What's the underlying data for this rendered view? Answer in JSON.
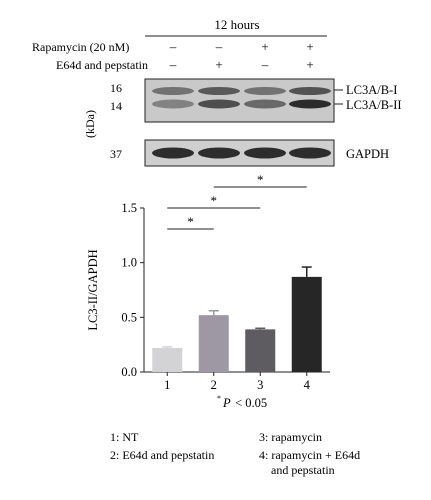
{
  "header": {
    "time_label": "12 hours"
  },
  "treatments": [
    {
      "label": "Rapamycin (20 nM)",
      "signs": [
        "–",
        "–",
        "+",
        "+"
      ]
    },
    {
      "label": "E64d and pepstatin",
      "signs": [
        "–",
        "+",
        "–",
        "+"
      ]
    }
  ],
  "blot": {
    "kda_axis_label": "(kDa)",
    "markers": [
      "16",
      "14",
      "37"
    ],
    "band_labels": [
      "LC3A/B-I",
      "LC3A/B-II",
      "GAPDH"
    ]
  },
  "significance": {
    "mark": "*",
    "footnote_star": "*",
    "footnote_p": "P",
    "footnote_rest": " < 0.05"
  },
  "legend_items": [
    "1: NT",
    "2: E64d and pepstatin",
    "3: rapamycin",
    "4: rapamycin + E64d",
    "and pepstatin"
  ],
  "chart_data": {
    "type": "bar",
    "ylabel": "LC3-II/GAPDH",
    "xlabel": "",
    "categories": [
      "1",
      "2",
      "3",
      "4"
    ],
    "values": [
      0.22,
      0.52,
      0.39,
      0.87
    ],
    "errors": [
      0.01,
      0.04,
      0.01,
      0.09
    ],
    "ylim": [
      0,
      1.5
    ],
    "yticks": [
      "0.0",
      "0.5",
      "1.0",
      "1.5"
    ],
    "bar_colors": [
      "#d3d3d5",
      "#9d98a3",
      "#5e5c60",
      "#262626"
    ],
    "comparisons": [
      [
        1,
        2
      ],
      [
        1,
        3
      ],
      [
        2,
        4
      ]
    ],
    "grid": false
  }
}
